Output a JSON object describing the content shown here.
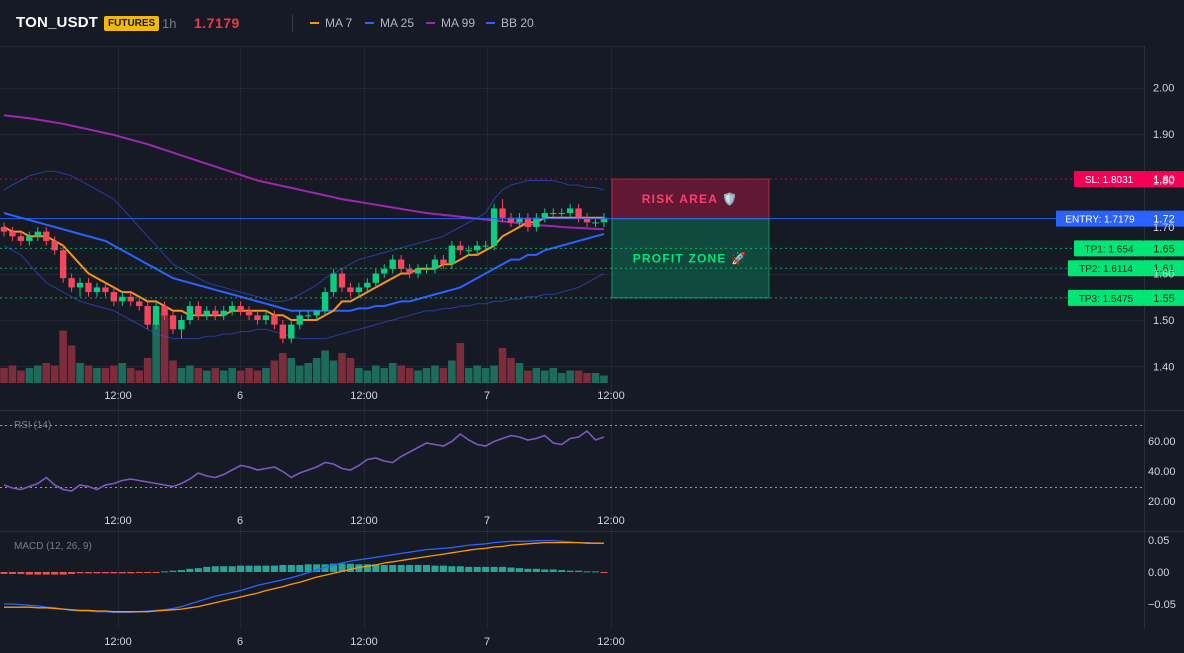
{
  "header": {
    "symbol": "TON_USDT",
    "badge": "FUTURES",
    "timeframe": "1h",
    "last_price": "1.7179",
    "legend": [
      {
        "label": "MA 7",
        "color": "#f7931a"
      },
      {
        "label": "MA 25",
        "color": "#2962ff"
      },
      {
        "label": "MA 99",
        "color": "#9c27b0"
      },
      {
        "label": "BB 20",
        "color": "#3d5afe"
      }
    ]
  },
  "colors": {
    "up": "#0ecb81",
    "down": "#f6465d",
    "background": "#161a25",
    "grid": "#232734",
    "text": "#d1d4dc"
  },
  "time_axis": [
    "12:00",
    "6",
    "12:00",
    "7",
    "12:00"
  ],
  "price_axis": [
    "2.00",
    "1.90",
    "1.80",
    "1.70",
    "1.60",
    "1.50",
    "1.40"
  ],
  "levels": [
    {
      "name": "sl",
      "label": "SL: 1.8031",
      "axis": "1.80",
      "value": 1.8031,
      "color": "#f50057"
    },
    {
      "name": "entry",
      "label": "ENTRY: 1.7179",
      "axis": "1.72",
      "value": 1.7179,
      "color": "#2962ff"
    },
    {
      "name": "tp1",
      "label": "TP1: 1.654",
      "axis": "1.65",
      "value": 1.654,
      "color": "#00e676"
    },
    {
      "name": "tp2",
      "label": "TP2: 1.6114",
      "axis": "1.61",
      "value": 1.6114,
      "color": "#00e676"
    },
    {
      "name": "tp3",
      "label": "TP3: 1.5475",
      "axis": "1.55",
      "value": 1.5475,
      "color": "#00e676"
    }
  ],
  "zones": {
    "risk": {
      "label": "RISK AREA 🛡️",
      "top": 1.8031,
      "bottom": 1.7179
    },
    "profit": {
      "label": "PROFIT ZONE 🚀",
      "top": 1.7179,
      "bottom": 1.5475
    }
  },
  "rsi_panel": {
    "title": "RSI (14)",
    "axis": [
      "60.00",
      "40.00",
      "20.00"
    ]
  },
  "macd_panel": {
    "title": "MACD (12, 26, 9)",
    "axis": [
      "0.05",
      "0.00",
      "−0.05"
    ]
  },
  "chart_data": {
    "type": "candlestick",
    "ylim": [
      1.37,
      2.06
    ],
    "candles": [
      [
        1.7,
        1.71,
        1.68,
        1.69
      ],
      [
        1.69,
        1.7,
        1.67,
        1.68
      ],
      [
        1.68,
        1.69,
        1.66,
        1.67
      ],
      [
        1.67,
        1.69,
        1.66,
        1.68
      ],
      [
        1.68,
        1.7,
        1.67,
        1.69
      ],
      [
        1.69,
        1.7,
        1.66,
        1.67
      ],
      [
        1.67,
        1.68,
        1.64,
        1.65
      ],
      [
        1.65,
        1.66,
        1.58,
        1.59
      ],
      [
        1.59,
        1.6,
        1.56,
        1.57
      ],
      [
        1.57,
        1.59,
        1.55,
        1.58
      ],
      [
        1.58,
        1.59,
        1.55,
        1.56
      ],
      [
        1.56,
        1.58,
        1.55,
        1.57
      ],
      [
        1.57,
        1.58,
        1.55,
        1.56
      ],
      [
        1.56,
        1.57,
        1.53,
        1.54
      ],
      [
        1.54,
        1.56,
        1.53,
        1.55
      ],
      [
        1.55,
        1.56,
        1.53,
        1.54
      ],
      [
        1.54,
        1.55,
        1.52,
        1.53
      ],
      [
        1.53,
        1.54,
        1.48,
        1.49
      ],
      [
        1.49,
        1.54,
        1.48,
        1.53
      ],
      [
        1.53,
        1.54,
        1.5,
        1.51
      ],
      [
        1.51,
        1.52,
        1.47,
        1.48
      ],
      [
        1.48,
        1.51,
        1.46,
        1.5
      ],
      [
        1.5,
        1.54,
        1.49,
        1.53
      ],
      [
        1.53,
        1.54,
        1.5,
        1.51
      ],
      [
        1.51,
        1.53,
        1.5,
        1.52
      ],
      [
        1.52,
        1.53,
        1.5,
        1.51
      ],
      [
        1.51,
        1.53,
        1.5,
        1.52
      ],
      [
        1.52,
        1.54,
        1.51,
        1.53
      ],
      [
        1.53,
        1.54,
        1.51,
        1.52
      ],
      [
        1.52,
        1.53,
        1.5,
        1.51
      ],
      [
        1.51,
        1.52,
        1.49,
        1.5
      ],
      [
        1.5,
        1.52,
        1.49,
        1.51
      ],
      [
        1.51,
        1.52,
        1.48,
        1.49
      ],
      [
        1.49,
        1.5,
        1.45,
        1.46
      ],
      [
        1.46,
        1.5,
        1.45,
        1.49
      ],
      [
        1.49,
        1.52,
        1.48,
        1.51
      ],
      [
        1.51,
        1.52,
        1.5,
        1.51
      ],
      [
        1.51,
        1.52,
        1.5,
        1.52
      ],
      [
        1.52,
        1.57,
        1.51,
        1.56
      ],
      [
        1.56,
        1.61,
        1.55,
        1.6
      ],
      [
        1.6,
        1.61,
        1.56,
        1.57
      ],
      [
        1.57,
        1.58,
        1.55,
        1.56
      ],
      [
        1.56,
        1.58,
        1.55,
        1.57
      ],
      [
        1.57,
        1.59,
        1.56,
        1.58
      ],
      [
        1.58,
        1.61,
        1.57,
        1.6
      ],
      [
        1.6,
        1.62,
        1.59,
        1.61
      ],
      [
        1.61,
        1.64,
        1.6,
        1.63
      ],
      [
        1.63,
        1.64,
        1.6,
        1.61
      ],
      [
        1.61,
        1.62,
        1.59,
        1.6
      ],
      [
        1.6,
        1.62,
        1.59,
        1.61
      ],
      [
        1.61,
        1.62,
        1.6,
        1.61
      ],
      [
        1.61,
        1.64,
        1.6,
        1.63
      ],
      [
        1.63,
        1.64,
        1.61,
        1.62
      ],
      [
        1.62,
        1.67,
        1.61,
        1.66
      ],
      [
        1.66,
        1.67,
        1.64,
        1.65
      ],
      [
        1.65,
        1.66,
        1.64,
        1.65
      ],
      [
        1.65,
        1.67,
        1.64,
        1.66
      ],
      [
        1.66,
        1.67,
        1.65,
        1.66
      ],
      [
        1.66,
        1.75,
        1.65,
        1.74
      ],
      [
        1.74,
        1.76,
        1.71,
        1.72
      ],
      [
        1.72,
        1.73,
        1.7,
        1.71
      ],
      [
        1.71,
        1.73,
        1.7,
        1.72
      ],
      [
        1.72,
        1.73,
        1.69,
        1.7
      ],
      [
        1.7,
        1.73,
        1.69,
        1.72
      ],
      [
        1.72,
        1.74,
        1.71,
        1.73
      ],
      [
        1.73,
        1.74,
        1.72,
        1.73
      ],
      [
        1.73,
        1.74,
        1.72,
        1.73
      ],
      [
        1.73,
        1.75,
        1.72,
        1.74
      ],
      [
        1.74,
        1.75,
        1.71,
        1.72
      ],
      [
        1.72,
        1.73,
        1.7,
        1.71
      ],
      [
        1.71,
        1.72,
        1.7,
        1.71
      ],
      [
        1.71,
        1.73,
        1.7,
        1.72
      ]
    ],
    "volume": [
      0.6,
      0.7,
      0.5,
      0.6,
      0.7,
      0.8,
      0.7,
      2.1,
      1.5,
      0.8,
      0.7,
      0.6,
      0.6,
      0.7,
      0.8,
      0.6,
      0.5,
      1.0,
      2.4,
      2.8,
      0.9,
      0.6,
      0.7,
      0.6,
      0.5,
      0.6,
      0.5,
      0.6,
      0.5,
      0.6,
      0.5,
      0.6,
      0.9,
      1.2,
      1.0,
      0.7,
      0.8,
      1.0,
      1.3,
      0.9,
      1.2,
      1.0,
      0.6,
      0.5,
      0.7,
      0.6,
      0.8,
      0.7,
      0.6,
      0.5,
      0.6,
      0.7,
      0.6,
      0.9,
      1.6,
      0.6,
      0.7,
      0.6,
      0.7,
      1.4,
      1.0,
      0.8,
      0.5,
      0.6,
      0.5,
      0.6,
      0.4,
      0.5,
      0.5,
      0.4,
      0.4,
      0.3
    ],
    "ma7": [
      1.7,
      1.69,
      1.69,
      1.68,
      1.68,
      1.68,
      1.67,
      1.66,
      1.64,
      1.62,
      1.6,
      1.59,
      1.58,
      1.57,
      1.56,
      1.56,
      1.55,
      1.54,
      1.54,
      1.53,
      1.52,
      1.52,
      1.51,
      1.51,
      1.51,
      1.51,
      1.51,
      1.52,
      1.52,
      1.52,
      1.52,
      1.52,
      1.51,
      1.51,
      1.5,
      1.5,
      1.5,
      1.5,
      1.51,
      1.52,
      1.54,
      1.54,
      1.55,
      1.56,
      1.57,
      1.58,
      1.59,
      1.6,
      1.6,
      1.61,
      1.61,
      1.61,
      1.62,
      1.62,
      1.63,
      1.64,
      1.64,
      1.65,
      1.66,
      1.68,
      1.69,
      1.7,
      1.71,
      1.71,
      1.72,
      1.72,
      1.72,
      1.72,
      1.72,
      1.72,
      1.72,
      1.72
    ],
    "ma25": [
      1.73,
      1.725,
      1.72,
      1.715,
      1.71,
      1.705,
      1.7,
      1.695,
      1.69,
      1.685,
      1.68,
      1.675,
      1.67,
      1.66,
      1.65,
      1.64,
      1.63,
      1.62,
      1.61,
      1.6,
      1.59,
      1.585,
      1.58,
      1.575,
      1.57,
      1.565,
      1.56,
      1.555,
      1.55,
      1.545,
      1.54,
      1.535,
      1.53,
      1.525,
      1.52,
      1.52,
      1.52,
      1.52,
      1.52,
      1.52,
      1.52,
      1.52,
      1.525,
      1.525,
      1.53,
      1.53,
      1.535,
      1.54,
      1.54,
      1.545,
      1.55,
      1.555,
      1.56,
      1.565,
      1.57,
      1.58,
      1.59,
      1.6,
      1.61,
      1.62,
      1.63,
      1.63,
      1.64,
      1.64,
      1.65,
      1.655,
      1.66,
      1.665,
      1.67,
      1.675,
      1.68,
      1.685
    ],
    "ma99": [
      1.94,
      1.938,
      1.936,
      1.934,
      1.931,
      1.928,
      1.925,
      1.922,
      1.918,
      1.914,
      1.91,
      1.906,
      1.902,
      1.898,
      1.893,
      1.888,
      1.883,
      1.878,
      1.872,
      1.866,
      1.86,
      1.854,
      1.848,
      1.842,
      1.836,
      1.83,
      1.824,
      1.818,
      1.812,
      1.806,
      1.8,
      1.796,
      1.792,
      1.788,
      1.784,
      1.78,
      1.776,
      1.772,
      1.768,
      1.764,
      1.76,
      1.757,
      1.754,
      1.751,
      1.748,
      1.745,
      1.742,
      1.739,
      1.736,
      1.733,
      1.73,
      1.728,
      1.726,
      1.724,
      1.722,
      1.72,
      1.718,
      1.716,
      1.714,
      1.712,
      1.71,
      1.708,
      1.706,
      1.704,
      1.703,
      1.702,
      1.7,
      1.699,
      1.698,
      1.697,
      1.696,
      1.695
    ],
    "bb_upper": [
      1.78,
      1.79,
      1.8,
      1.81,
      1.815,
      1.82,
      1.82,
      1.815,
      1.81,
      1.8,
      1.79,
      1.78,
      1.77,
      1.76,
      1.74,
      1.72,
      1.7,
      1.68,
      1.66,
      1.64,
      1.62,
      1.61,
      1.6,
      1.59,
      1.58,
      1.575,
      1.57,
      1.565,
      1.56,
      1.555,
      1.55,
      1.545,
      1.54,
      1.54,
      1.545,
      1.555,
      1.565,
      1.575,
      1.59,
      1.6,
      1.61,
      1.62,
      1.63,
      1.635,
      1.64,
      1.645,
      1.65,
      1.655,
      1.66,
      1.665,
      1.67,
      1.675,
      1.68,
      1.69,
      1.7,
      1.71,
      1.72,
      1.73,
      1.76,
      1.78,
      1.79,
      1.795,
      1.8,
      1.8,
      1.8,
      1.8,
      1.795,
      1.79,
      1.79,
      1.785,
      1.785,
      1.78
    ],
    "bb_lower": [
      1.66,
      1.65,
      1.64,
      1.62,
      1.6,
      1.58,
      1.57,
      1.56,
      1.55,
      1.54,
      1.535,
      1.53,
      1.525,
      1.52,
      1.51,
      1.5,
      1.49,
      1.48,
      1.47,
      1.465,
      1.46,
      1.46,
      1.46,
      1.46,
      1.465,
      1.465,
      1.47,
      1.47,
      1.475,
      1.475,
      1.48,
      1.48,
      1.475,
      1.47,
      1.465,
      1.46,
      1.46,
      1.46,
      1.46,
      1.465,
      1.47,
      1.475,
      1.48,
      1.485,
      1.49,
      1.495,
      1.5,
      1.505,
      1.51,
      1.515,
      1.52,
      1.52,
      1.525,
      1.525,
      1.53,
      1.53,
      1.535,
      1.535,
      1.54,
      1.54,
      1.545,
      1.545,
      1.55,
      1.55,
      1.555,
      1.555,
      1.56,
      1.565,
      1.57,
      1.58,
      1.59,
      1.6
    ],
    "rsi": [
      30,
      28,
      27,
      29,
      31,
      35,
      30,
      27,
      26,
      30,
      29,
      27,
      30,
      31,
      33,
      34,
      33,
      32,
      31,
      30,
      29,
      31,
      34,
      38,
      36,
      35,
      37,
      40,
      43,
      42,
      40,
      41,
      42,
      39,
      35,
      38,
      40,
      42,
      45,
      44,
      41,
      40,
      43,
      47,
      48,
      46,
      45,
      49,
      52,
      55,
      58,
      57,
      56,
      59,
      64,
      60,
      57,
      56,
      59,
      61,
      63,
      62,
      60,
      61,
      63,
      58,
      57,
      61,
      62,
      66,
      60,
      62
    ],
    "macd": [
      -0.05,
      -0.05,
      -0.051,
      -0.052,
      -0.053,
      -0.055,
      -0.056,
      -0.058,
      -0.06,
      -0.061,
      -0.061,
      -0.062,
      -0.062,
      -0.063,
      -0.063,
      -0.063,
      -0.062,
      -0.061,
      -0.06,
      -0.059,
      -0.057,
      -0.054,
      -0.05,
      -0.046,
      -0.042,
      -0.038,
      -0.035,
      -0.032,
      -0.029,
      -0.025,
      -0.021,
      -0.018,
      -0.015,
      -0.012,
      -0.009,
      -0.005,
      -0.001,
      0.003,
      0.007,
      0.011,
      0.014,
      0.017,
      0.019,
      0.021,
      0.023,
      0.025,
      0.027,
      0.029,
      0.031,
      0.033,
      0.035,
      0.036,
      0.037,
      0.038,
      0.04,
      0.042,
      0.043,
      0.044,
      0.046,
      0.047,
      0.048,
      0.048,
      0.048,
      0.049,
      0.049,
      0.049,
      0.048,
      0.047,
      0.046,
      0.046,
      0.045,
      0.045
    ],
    "signal": [
      -0.055,
      -0.055,
      -0.055,
      -0.055,
      -0.056,
      -0.056,
      -0.057,
      -0.058,
      -0.059,
      -0.06,
      -0.06,
      -0.061,
      -0.061,
      -0.062,
      -0.062,
      -0.062,
      -0.062,
      -0.062,
      -0.061,
      -0.06,
      -0.059,
      -0.058,
      -0.056,
      -0.054,
      -0.051,
      -0.048,
      -0.045,
      -0.042,
      -0.039,
      -0.036,
      -0.033,
      -0.029,
      -0.026,
      -0.023,
      -0.019,
      -0.016,
      -0.012,
      -0.008,
      -0.005,
      -0.002,
      0.001,
      0.004,
      0.007,
      0.009,
      0.011,
      0.014,
      0.016,
      0.018,
      0.02,
      0.022,
      0.024,
      0.026,
      0.028,
      0.03,
      0.032,
      0.034,
      0.036,
      0.037,
      0.039,
      0.04,
      0.042,
      0.043,
      0.044,
      0.045,
      0.046,
      0.046,
      0.046,
      0.046,
      0.046,
      0.045,
      0.045,
      0.045
    ],
    "histogram": [
      -0.003,
      -0.003,
      -0.003,
      -0.004,
      -0.004,
      -0.004,
      -0.004,
      -0.004,
      -0.003,
      -0.002,
      -0.002,
      -0.002,
      -0.002,
      -0.002,
      -0.002,
      -0.002,
      -0.001,
      -0.001,
      -0.001,
      0.001,
      0.002,
      0.003,
      0.005,
      0.006,
      0.008,
      0.009,
      0.009,
      0.009,
      0.01,
      0.01,
      0.01,
      0.01,
      0.01,
      0.011,
      0.011,
      0.011,
      0.012,
      0.012,
      0.012,
      0.013,
      0.013,
      0.013,
      0.012,
      0.012,
      0.012,
      0.011,
      0.011,
      0.011,
      0.011,
      0.011,
      0.011,
      0.01,
      0.01,
      0.009,
      0.009,
      0.008,
      0.008,
      0.008,
      0.008,
      0.008,
      0.007,
      0.006,
      0.005,
      0.005,
      0.004,
      0.004,
      0.003,
      0.002,
      0.002,
      0.001,
      0.001,
      -0.001
    ]
  }
}
